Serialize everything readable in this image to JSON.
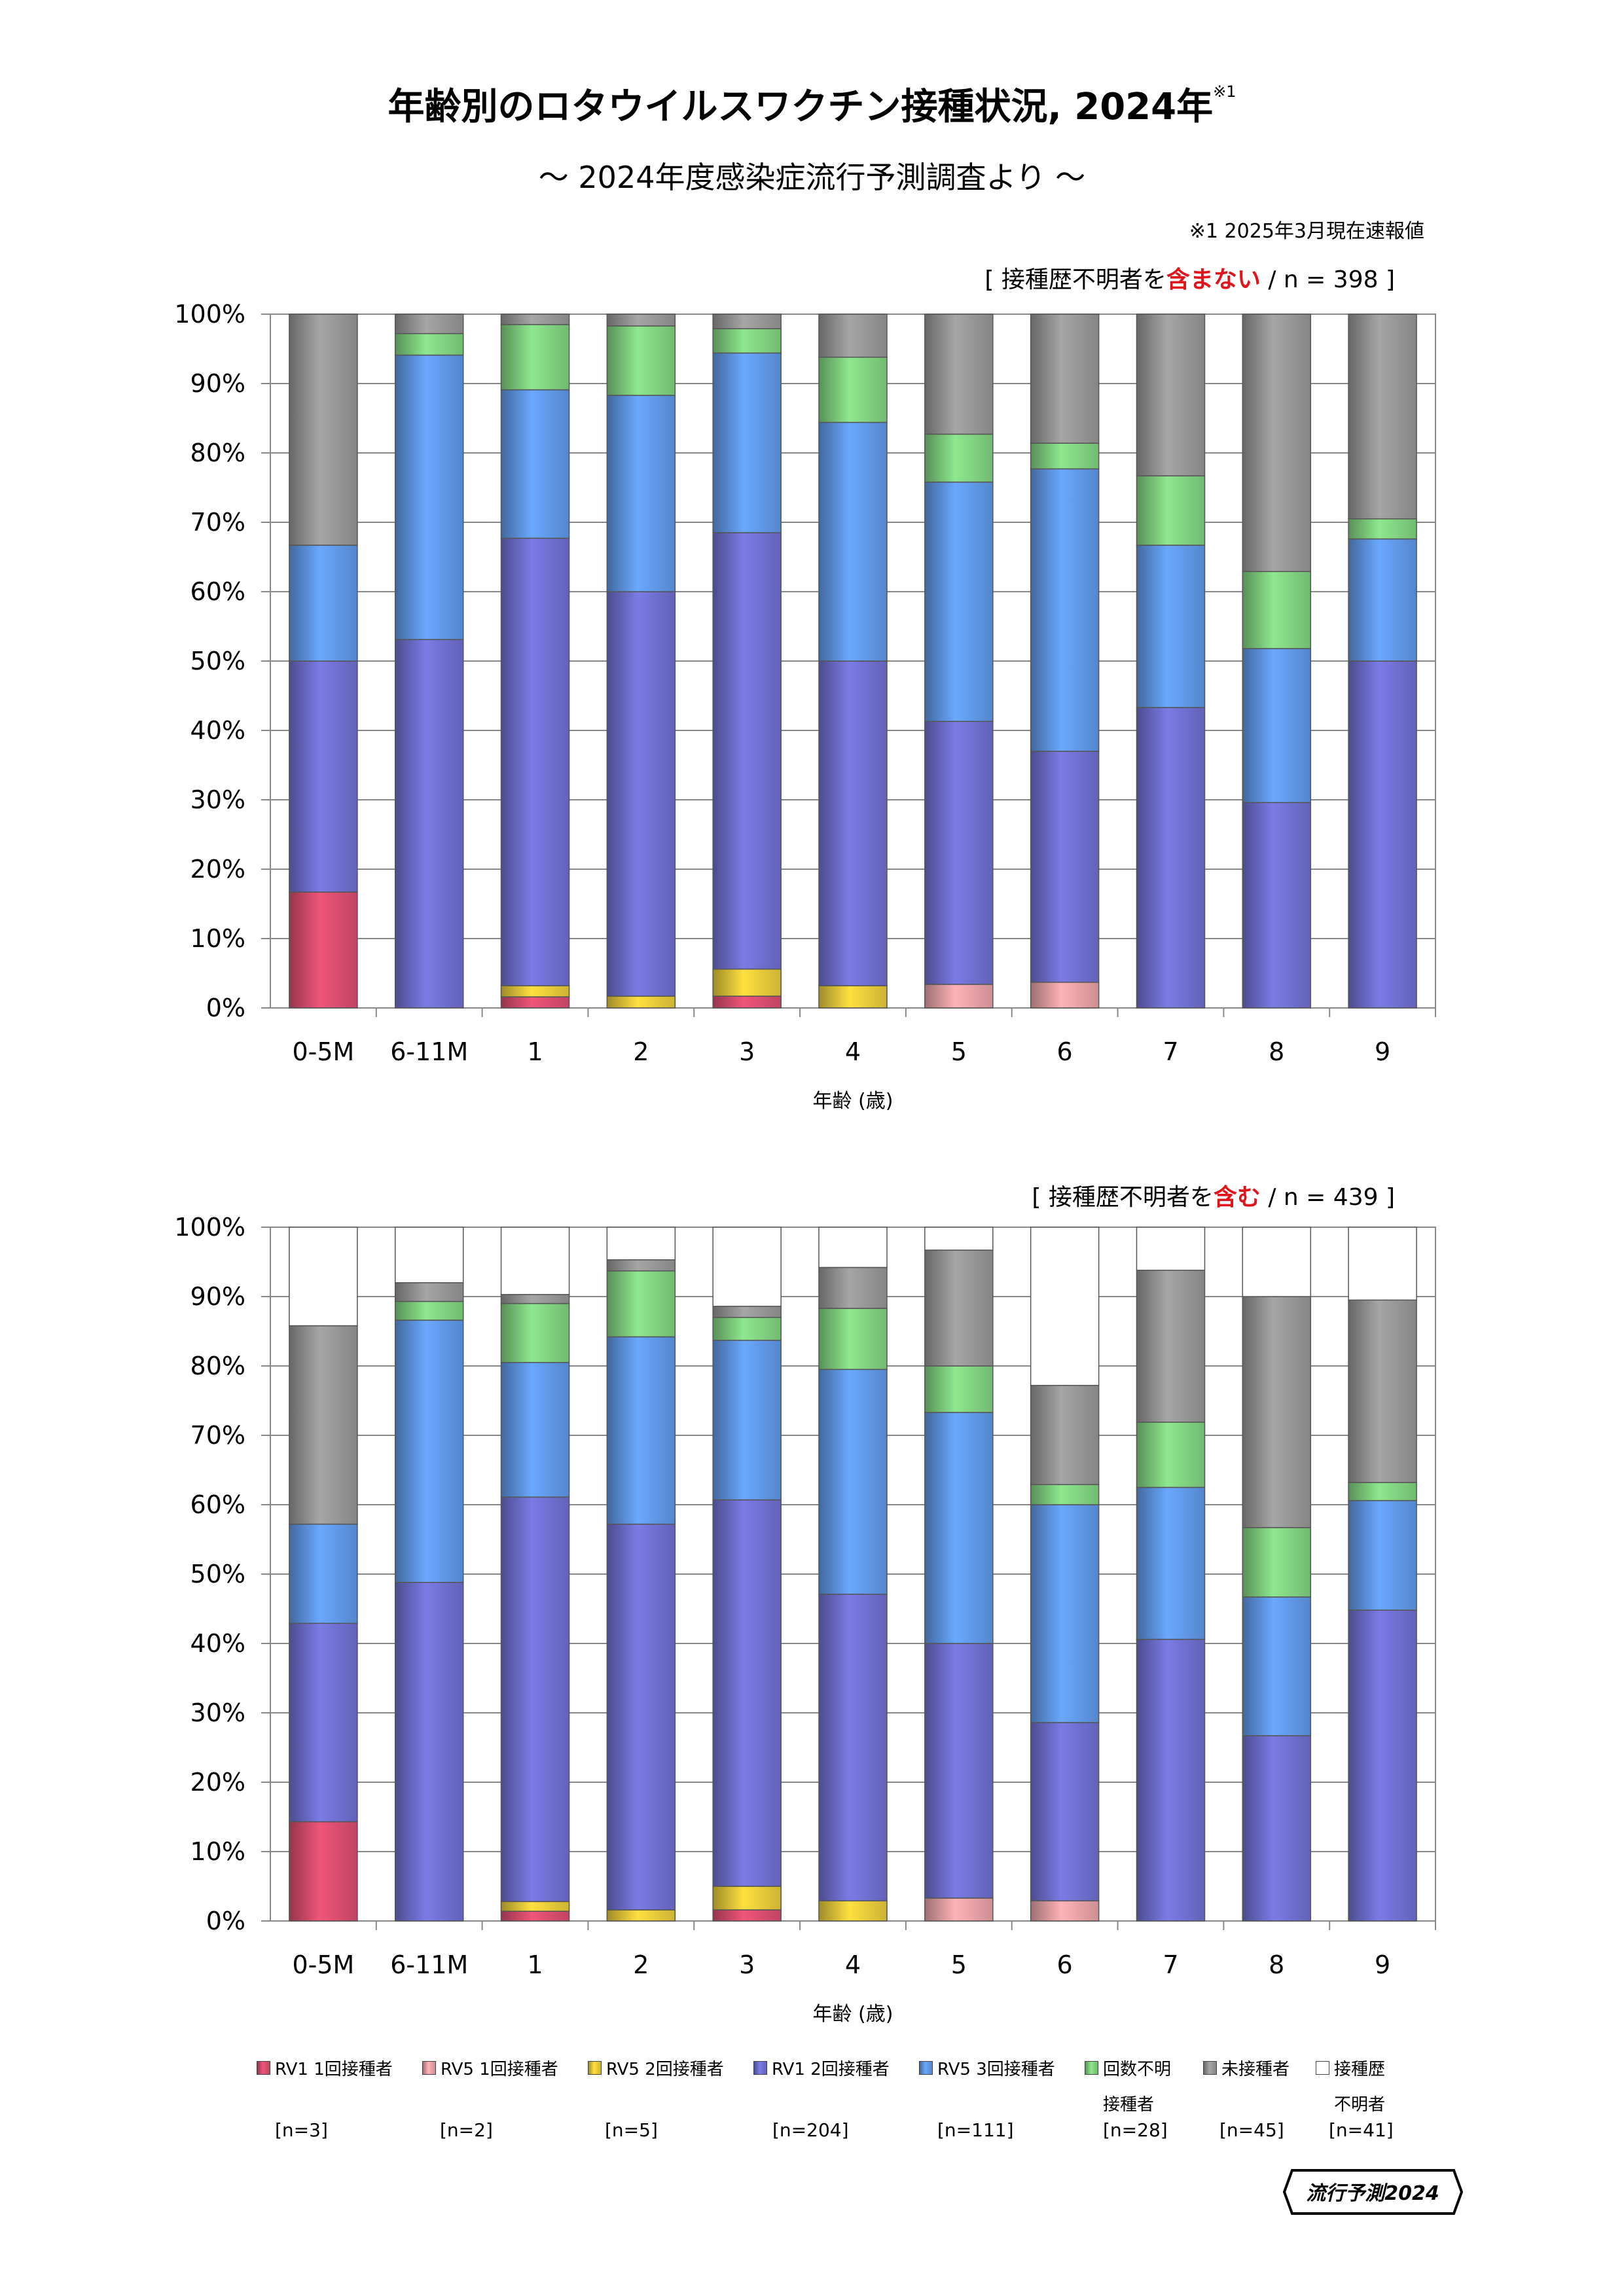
{
  "header": {
    "title": "年齢別のロタウイルスワクチン接種状況, 2024年",
    "title_note_mark": "※1",
    "subtitle": "～ 2024年度感染症流行予測調査より ～",
    "note": "※1  2025年3月現在速報値"
  },
  "chart_data": [
    {
      "type": "bar",
      "stacked": true,
      "label_prefix": "[ 接種歴不明者を",
      "label_emphasis": "含まない",
      "label_suffix": " / n = 398 ]",
      "categories": [
        "0-5M",
        "6-11M",
        "1",
        "2",
        "3",
        "4",
        "5",
        "6",
        "7",
        "8",
        "9"
      ],
      "xlabel": "年齢 (歳)",
      "ylim": [
        0,
        100
      ],
      "yticks": [
        "0%",
        "10%",
        "20%",
        "30%",
        "40%",
        "50%",
        "60%",
        "70%",
        "80%",
        "90%",
        "100%"
      ],
      "grid": true,
      "series": [
        {
          "name": "RV1 1回接種者",
          "values": [
            16.7,
            0,
            1.6,
            0,
            1.7,
            0,
            0,
            0,
            0,
            0,
            0
          ]
        },
        {
          "name": "RV5 1回接種者",
          "values": [
            0,
            0,
            0,
            0,
            0,
            0,
            3.4,
            3.7,
            0,
            0,
            0
          ]
        },
        {
          "name": "RV5 2回接種者",
          "values": [
            0,
            0,
            1.6,
            1.7,
            3.9,
            3.2,
            0,
            0,
            0,
            0,
            0
          ]
        },
        {
          "name": "RV1 2回接種者",
          "values": [
            33.3,
            53.1,
            64.5,
            58.3,
            62.9,
            46.8,
            37.9,
            33.3,
            43.3,
            29.6,
            50.0
          ]
        },
        {
          "name": "RV5 3回接種者",
          "values": [
            16.7,
            41.0,
            21.4,
            28.3,
            25.9,
            34.4,
            34.5,
            40.7,
            23.4,
            22.2,
            17.6
          ]
        },
        {
          "name": "回数不明接種者",
          "values": [
            0,
            3.1,
            9.4,
            10.0,
            3.5,
            9.4,
            6.9,
            3.7,
            10.0,
            11.1,
            2.9
          ]
        },
        {
          "name": "未接種者",
          "values": [
            33.3,
            2.8,
            1.5,
            1.7,
            2.1,
            6.2,
            17.3,
            18.6,
            23.3,
            37.1,
            29.5
          ]
        },
        {
          "name": "接種歴不明者",
          "values": [
            0,
            0,
            0,
            0,
            0,
            0,
            0,
            0,
            0,
            0,
            0
          ]
        }
      ]
    },
    {
      "type": "bar",
      "stacked": true,
      "label_prefix": "[ 接種歴不明者を",
      "label_emphasis": "含む",
      "label_suffix": " / n = 439 ]",
      "categories": [
        "0-5M",
        "6-11M",
        "1",
        "2",
        "3",
        "4",
        "5",
        "6",
        "7",
        "8",
        "9"
      ],
      "xlabel": "年齢 (歳)",
      "ylim": [
        0,
        100
      ],
      "yticks": [
        "0%",
        "10%",
        "20%",
        "30%",
        "40%",
        "50%",
        "60%",
        "70%",
        "80%",
        "90%",
        "100%"
      ],
      "grid": true,
      "series": [
        {
          "name": "RV1 1回接種者",
          "values": [
            14.3,
            0,
            1.4,
            0,
            1.6,
            0,
            0,
            0,
            0,
            0,
            0
          ]
        },
        {
          "name": "RV5 1回接種者",
          "values": [
            0,
            0,
            0,
            0,
            0,
            0,
            3.3,
            2.9,
            0,
            0,
            0
          ]
        },
        {
          "name": "RV5 2回接種者",
          "values": [
            0,
            0,
            1.4,
            1.6,
            3.4,
            2.9,
            0,
            0,
            0,
            0,
            0
          ]
        },
        {
          "name": "RV1 2回接種者",
          "values": [
            28.6,
            48.8,
            58.3,
            55.6,
            55.7,
            44.2,
            36.7,
            25.7,
            40.6,
            26.7,
            44.8
          ]
        },
        {
          "name": "RV5 3回接種者",
          "values": [
            14.3,
            37.8,
            19.4,
            27.0,
            23.0,
            32.4,
            33.3,
            31.4,
            21.9,
            20.0,
            15.8
          ]
        },
        {
          "name": "回数不明接種者",
          "values": [
            0,
            2.7,
            8.5,
            9.5,
            3.3,
            8.8,
            6.7,
            2.9,
            9.4,
            10.0,
            2.6
          ]
        },
        {
          "name": "未接種者",
          "values": [
            28.6,
            2.7,
            1.3,
            1.6,
            1.6,
            5.9,
            16.7,
            14.3,
            21.9,
            33.3,
            26.3
          ]
        },
        {
          "name": "接種歴不明者",
          "values": [
            14.2,
            8.0,
            9.7,
            4.7,
            11.4,
            5.8,
            3.3,
            22.8,
            6.2,
            10.0,
            10.5
          ]
        }
      ]
    }
  ],
  "legend": {
    "items": [
      {
        "label": "RV1 1回接種者",
        "label2": "",
        "n": "[n=3]"
      },
      {
        "label": "RV5 1回接種者",
        "label2": "",
        "n": "[n=2]"
      },
      {
        "label": "RV5 2回接種者",
        "label2": "",
        "n": "[n=5]"
      },
      {
        "label": "RV1 2回接種者",
        "label2": "",
        "n": "[n=204]"
      },
      {
        "label": "RV5 3回接種者",
        "label2": "",
        "n": "[n=111]"
      },
      {
        "label": "回数不明",
        "label2": "接種者",
        "n": "[n=28]"
      },
      {
        "label": "未接種者",
        "label2": "",
        "n": "[n=45]"
      },
      {
        "label": "接種歴",
        "label2": "不明者",
        "n": "[n=41]"
      }
    ]
  },
  "colors": {
    "rv1_1": "#f0557a",
    "rv5_1": "#ffb3b8",
    "rv5_2": "#ffe040",
    "rv1_2": "#7b7be6",
    "rv5_3": "#6aa8ff",
    "unknown_count": "#8ee88e",
    "unvaccinated": "#a6a6a6",
    "history_unknown": "#ffffff",
    "emphasis": "#e0151b"
  },
  "logo": {
    "text": "流行予測2024"
  }
}
